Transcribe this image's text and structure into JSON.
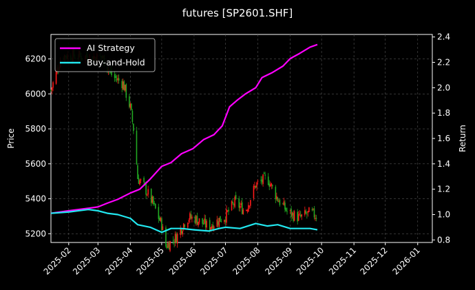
{
  "chart_data": {
    "type": "line",
    "title": "futures [SP2601.SHF]",
    "xlabel": "",
    "ylabel_left": "Price",
    "ylabel_right": "Return",
    "x_ticks": [
      "2025-02",
      "2025-03",
      "2025-04",
      "2025-05",
      "2025-06",
      "2025-07",
      "2025-08",
      "2025-09",
      "2025-10",
      "2025-11",
      "2025-12",
      "2026-01"
    ],
    "y_left_ticks": [
      5200,
      5400,
      5600,
      5800,
      6000,
      6200
    ],
    "y_left_range": [
      5150,
      6340
    ],
    "y_right_ticks": [
      0.8,
      1.0,
      1.2,
      1.4,
      1.6,
      1.8,
      2.0,
      2.2,
      2.4
    ],
    "y_right_range": [
      0.78,
      2.42
    ],
    "x_range": [
      "2025-01-15",
      "2026-01-15"
    ],
    "grid": true,
    "legend_position": "top-left",
    "series": [
      {
        "name": "AI Strategy",
        "axis": "right",
        "color": "#ff00ff",
        "points": [
          [
            "2025-01-15",
            1.01
          ],
          [
            "2025-02-01",
            1.03
          ],
          [
            "2025-02-20",
            1.05
          ],
          [
            "2025-03-01",
            1.06
          ],
          [
            "2025-03-10",
            1.09
          ],
          [
            "2025-03-20",
            1.12
          ],
          [
            "2025-04-01",
            1.17
          ],
          [
            "2025-04-10",
            1.2
          ],
          [
            "2025-04-20",
            1.28
          ],
          [
            "2025-05-01",
            1.38
          ],
          [
            "2025-05-10",
            1.41
          ],
          [
            "2025-05-20",
            1.48
          ],
          [
            "2025-05-31",
            1.52
          ],
          [
            "2025-06-10",
            1.59
          ],
          [
            "2025-06-20",
            1.63
          ],
          [
            "2025-06-28",
            1.7
          ],
          [
            "2025-07-05",
            1.85
          ],
          [
            "2025-07-12",
            1.9
          ],
          [
            "2025-07-20",
            1.95
          ],
          [
            "2025-07-30",
            2.0
          ],
          [
            "2025-08-05",
            2.08
          ],
          [
            "2025-08-15",
            2.12
          ],
          [
            "2025-08-25",
            2.17
          ],
          [
            "2025-09-01",
            2.23
          ],
          [
            "2025-09-10",
            2.27
          ],
          [
            "2025-09-20",
            2.32
          ],
          [
            "2025-09-27",
            2.34
          ]
        ]
      },
      {
        "name": "Buy-and-Hold",
        "axis": "right",
        "color": "#22e8f0",
        "points": [
          [
            "2025-01-15",
            1.01
          ],
          [
            "2025-02-01",
            1.02
          ],
          [
            "2025-02-20",
            1.04
          ],
          [
            "2025-03-01",
            1.03
          ],
          [
            "2025-03-10",
            1.01
          ],
          [
            "2025-03-20",
            1.0
          ],
          [
            "2025-04-01",
            0.97
          ],
          [
            "2025-04-08",
            0.92
          ],
          [
            "2025-04-20",
            0.9
          ],
          [
            "2025-05-01",
            0.86
          ],
          [
            "2025-05-10",
            0.89
          ],
          [
            "2025-05-20",
            0.89
          ],
          [
            "2025-06-01",
            0.88
          ],
          [
            "2025-06-15",
            0.87
          ],
          [
            "2025-06-25",
            0.89
          ],
          [
            "2025-07-01",
            0.9
          ],
          [
            "2025-07-15",
            0.89
          ],
          [
            "2025-07-30",
            0.93
          ],
          [
            "2025-08-10",
            0.91
          ],
          [
            "2025-08-20",
            0.92
          ],
          [
            "2025-09-01",
            0.89
          ],
          [
            "2025-09-10",
            0.89
          ],
          [
            "2025-09-20",
            0.89
          ],
          [
            "2025-09-27",
            0.88
          ]
        ]
      }
    ],
    "candles": {
      "axis": "left",
      "up_color": "#ff1a1a",
      "down_color": "#22aa22",
      "path": [
        [
          "2025-01-15",
          6020
        ],
        [
          "2025-01-25",
          6220
        ],
        [
          "2025-03-05",
          6210
        ],
        [
          "2025-03-15",
          6100
        ],
        [
          "2025-03-25",
          6060
        ],
        [
          "2025-04-01",
          5920
        ],
        [
          "2025-04-05",
          5760
        ],
        [
          "2025-04-08",
          5520
        ],
        [
          "2025-04-15",
          5460
        ],
        [
          "2025-04-22",
          5380
        ],
        [
          "2025-05-01",
          5250
        ],
        [
          "2025-05-05",
          5130
        ],
        [
          "2025-05-15",
          5180
        ],
        [
          "2025-05-25",
          5290
        ],
        [
          "2025-06-01",
          5290
        ],
        [
          "2025-06-15",
          5240
        ],
        [
          "2025-06-25",
          5280
        ],
        [
          "2025-07-01",
          5300
        ],
        [
          "2025-07-10",
          5380
        ],
        [
          "2025-07-20",
          5330
        ],
        [
          "2025-07-30",
          5480
        ],
        [
          "2025-08-10",
          5520
        ],
        [
          "2025-08-20",
          5400
        ],
        [
          "2025-08-30",
          5320
        ],
        [
          "2025-09-10",
          5290
        ],
        [
          "2025-09-20",
          5320
        ],
        [
          "2025-09-27",
          5300
        ]
      ]
    }
  }
}
